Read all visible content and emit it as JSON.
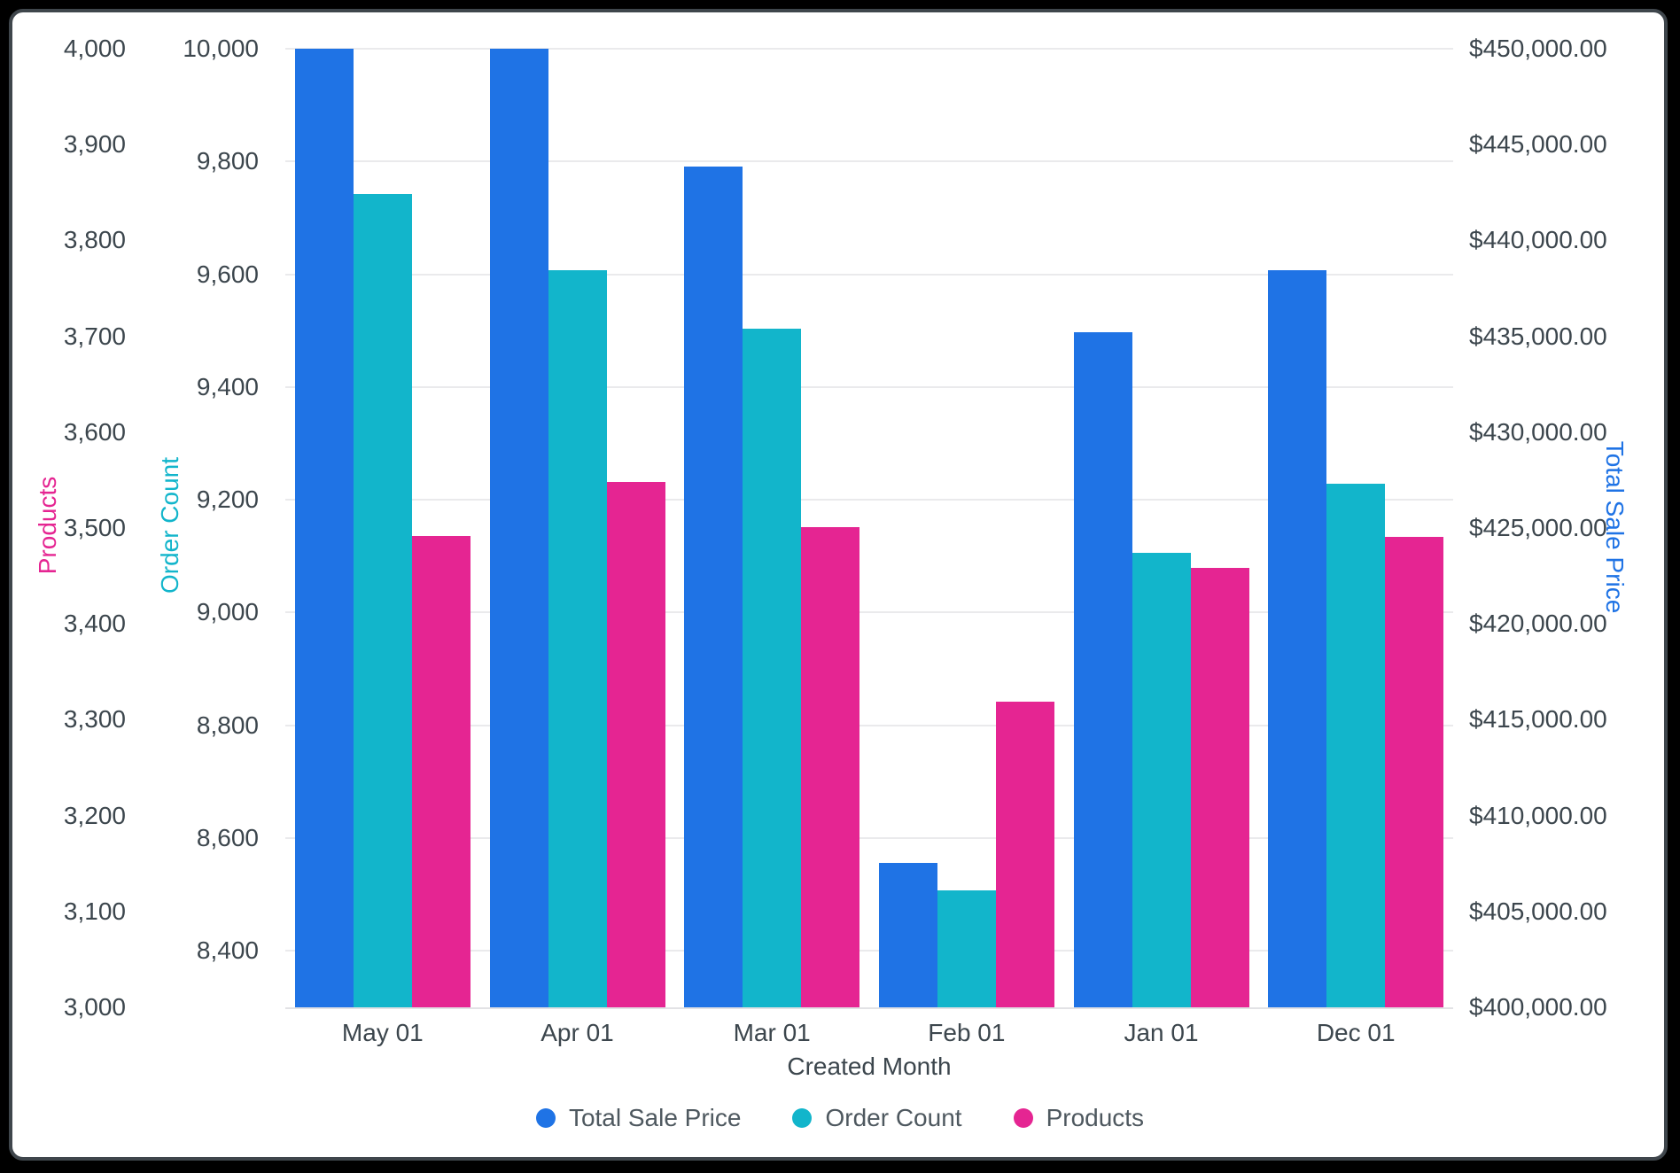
{
  "window": {
    "outer_color": "#000000",
    "frame_border_color": "#3f464c",
    "background_color": "#ffffff"
  },
  "chart_data": {
    "type": "bar",
    "title": "",
    "xlabel": "Created Month",
    "categories": [
      "May 01",
      "Apr 01",
      "Mar 01",
      "Feb 01",
      "Jan 01",
      "Dec 01"
    ],
    "grid": "on",
    "legend_position": "bottom",
    "series": [
      {
        "name": "Total Sale Price",
        "axis": "tsp",
        "color": "#1F73E5",
        "values": [
          450000,
          450000,
          443850,
          407550,
          435230,
          438470
        ]
      },
      {
        "name": "Order Count",
        "axis": "order",
        "color": "#12B5CB",
        "values": [
          9742,
          9607,
          9503,
          8508,
          9106,
          9228
        ]
      },
      {
        "name": "Products",
        "axis": "products",
        "color": "#E52592",
        "values": [
          3492,
          3548,
          3501,
          3319,
          3458,
          3491
        ]
      }
    ],
    "axes": {
      "products": {
        "label": "Products",
        "color": "#E52592",
        "min": 3000,
        "max": 4000,
        "ticks": [
          {
            "v": 4000,
            "label": "4,000"
          },
          {
            "v": 3900,
            "label": "3,900"
          },
          {
            "v": 3800,
            "label": "3,800"
          },
          {
            "v": 3700,
            "label": "3,700"
          },
          {
            "v": 3600,
            "label": "3,600"
          },
          {
            "v": 3500,
            "label": "3,500"
          },
          {
            "v": 3400,
            "label": "3,400"
          },
          {
            "v": 3300,
            "label": "3,300"
          },
          {
            "v": 3200,
            "label": "3,200"
          },
          {
            "v": 3100,
            "label": "3,100"
          },
          {
            "v": 3000,
            "label": "3,000"
          }
        ]
      },
      "order": {
        "label": "Order Count",
        "color": "#12B5CB",
        "min": 8300,
        "max": 10000,
        "ticks": [
          {
            "v": 10000,
            "label": "10,000"
          },
          {
            "v": 9800,
            "label": "9,800"
          },
          {
            "v": 9600,
            "label": "9,600"
          },
          {
            "v": 9400,
            "label": "9,400"
          },
          {
            "v": 9200,
            "label": "9,200"
          },
          {
            "v": 9000,
            "label": "9,000"
          },
          {
            "v": 8800,
            "label": "8,800"
          },
          {
            "v": 8600,
            "label": "8,600"
          },
          {
            "v": 8400,
            "label": "8,400"
          }
        ]
      },
      "tsp": {
        "label": "Total Sale Price",
        "color": "#1F73E5",
        "min": 400000,
        "max": 450000,
        "ticks": [
          {
            "v": 450000,
            "label": "$450,000.00"
          },
          {
            "v": 445000,
            "label": "$445,000.00"
          },
          {
            "v": 440000,
            "label": "$440,000.00"
          },
          {
            "v": 435000,
            "label": "$435,000.00"
          },
          {
            "v": 430000,
            "label": "$430,000.00"
          },
          {
            "v": 425000,
            "label": "$425,000.00"
          },
          {
            "v": 420000,
            "label": "$420,000.00"
          },
          {
            "v": 415000,
            "label": "$415,000.00"
          },
          {
            "v": 410000,
            "label": "$410,000.00"
          },
          {
            "v": 405000,
            "label": "$405,000.00"
          },
          {
            "v": 400000,
            "label": "$400,000.00"
          }
        ]
      }
    },
    "legend": [
      {
        "label": "Total Sale Price",
        "color": "#1F73E5"
      },
      {
        "label": "Order Count",
        "color": "#12B5CB"
      },
      {
        "label": "Products",
        "color": "#E52592"
      }
    ]
  }
}
